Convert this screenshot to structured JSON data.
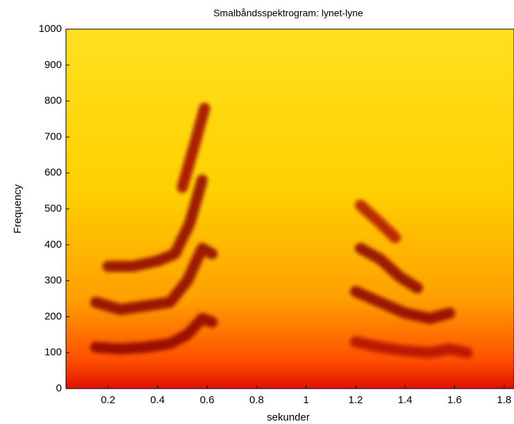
{
  "chart_data": {
    "type": "spectrogram",
    "title": "Smalbåndsspektrogram: lynet-lyne",
    "xlabel": "sekunder",
    "ylabel": "Frequency",
    "xlim": [
      0.03,
      1.84
    ],
    "ylim": [
      0,
      1000
    ],
    "xticks": [
      0.2,
      0.4,
      0.6,
      0.8,
      1,
      1.2,
      1.4,
      1.6,
      1.8
    ],
    "yticks": [
      0,
      100,
      200,
      300,
      400,
      500,
      600,
      700,
      800,
      900,
      1000
    ],
    "series": [
      {
        "color": "#8b0000",
        "x": [
          0.15,
          0.25,
          0.35,
          0.45,
          0.52,
          0.58,
          0.62
        ],
        "values": [
          115,
          110,
          115,
          125,
          150,
          195,
          185
        ]
      },
      {
        "color": "#8b0000",
        "x": [
          0.15,
          0.25,
          0.35,
          0.45,
          0.52,
          0.58,
          0.62
        ],
        "values": [
          240,
          220,
          230,
          240,
          300,
          390,
          375
        ]
      },
      {
        "color": "#8b0000",
        "x": [
          0.2,
          0.3,
          0.4,
          0.47,
          0.53,
          0.58
        ],
        "values": [
          340,
          340,
          355,
          375,
          460,
          580
        ]
      },
      {
        "color": "#a00000",
        "x": [
          0.5,
          0.55,
          0.59
        ],
        "values": [
          560,
          680,
          780
        ]
      },
      {
        "color": "#b01000",
        "x": [
          1.2,
          1.3,
          1.4,
          1.5,
          1.58,
          1.65
        ],
        "values": [
          130,
          115,
          105,
          100,
          110,
          100
        ]
      },
      {
        "color": "#8b0000",
        "x": [
          1.2,
          1.3,
          1.4,
          1.5,
          1.58
        ],
        "values": [
          270,
          240,
          210,
          195,
          210
        ]
      },
      {
        "color": "#8b0000",
        "x": [
          1.22,
          1.3,
          1.38,
          1.45
        ],
        "values": [
          390,
          360,
          310,
          280
        ]
      },
      {
        "color": "#b01000",
        "x": [
          1.22,
          1.3,
          1.36
        ],
        "values": [
          510,
          460,
          420
        ]
      }
    ]
  }
}
